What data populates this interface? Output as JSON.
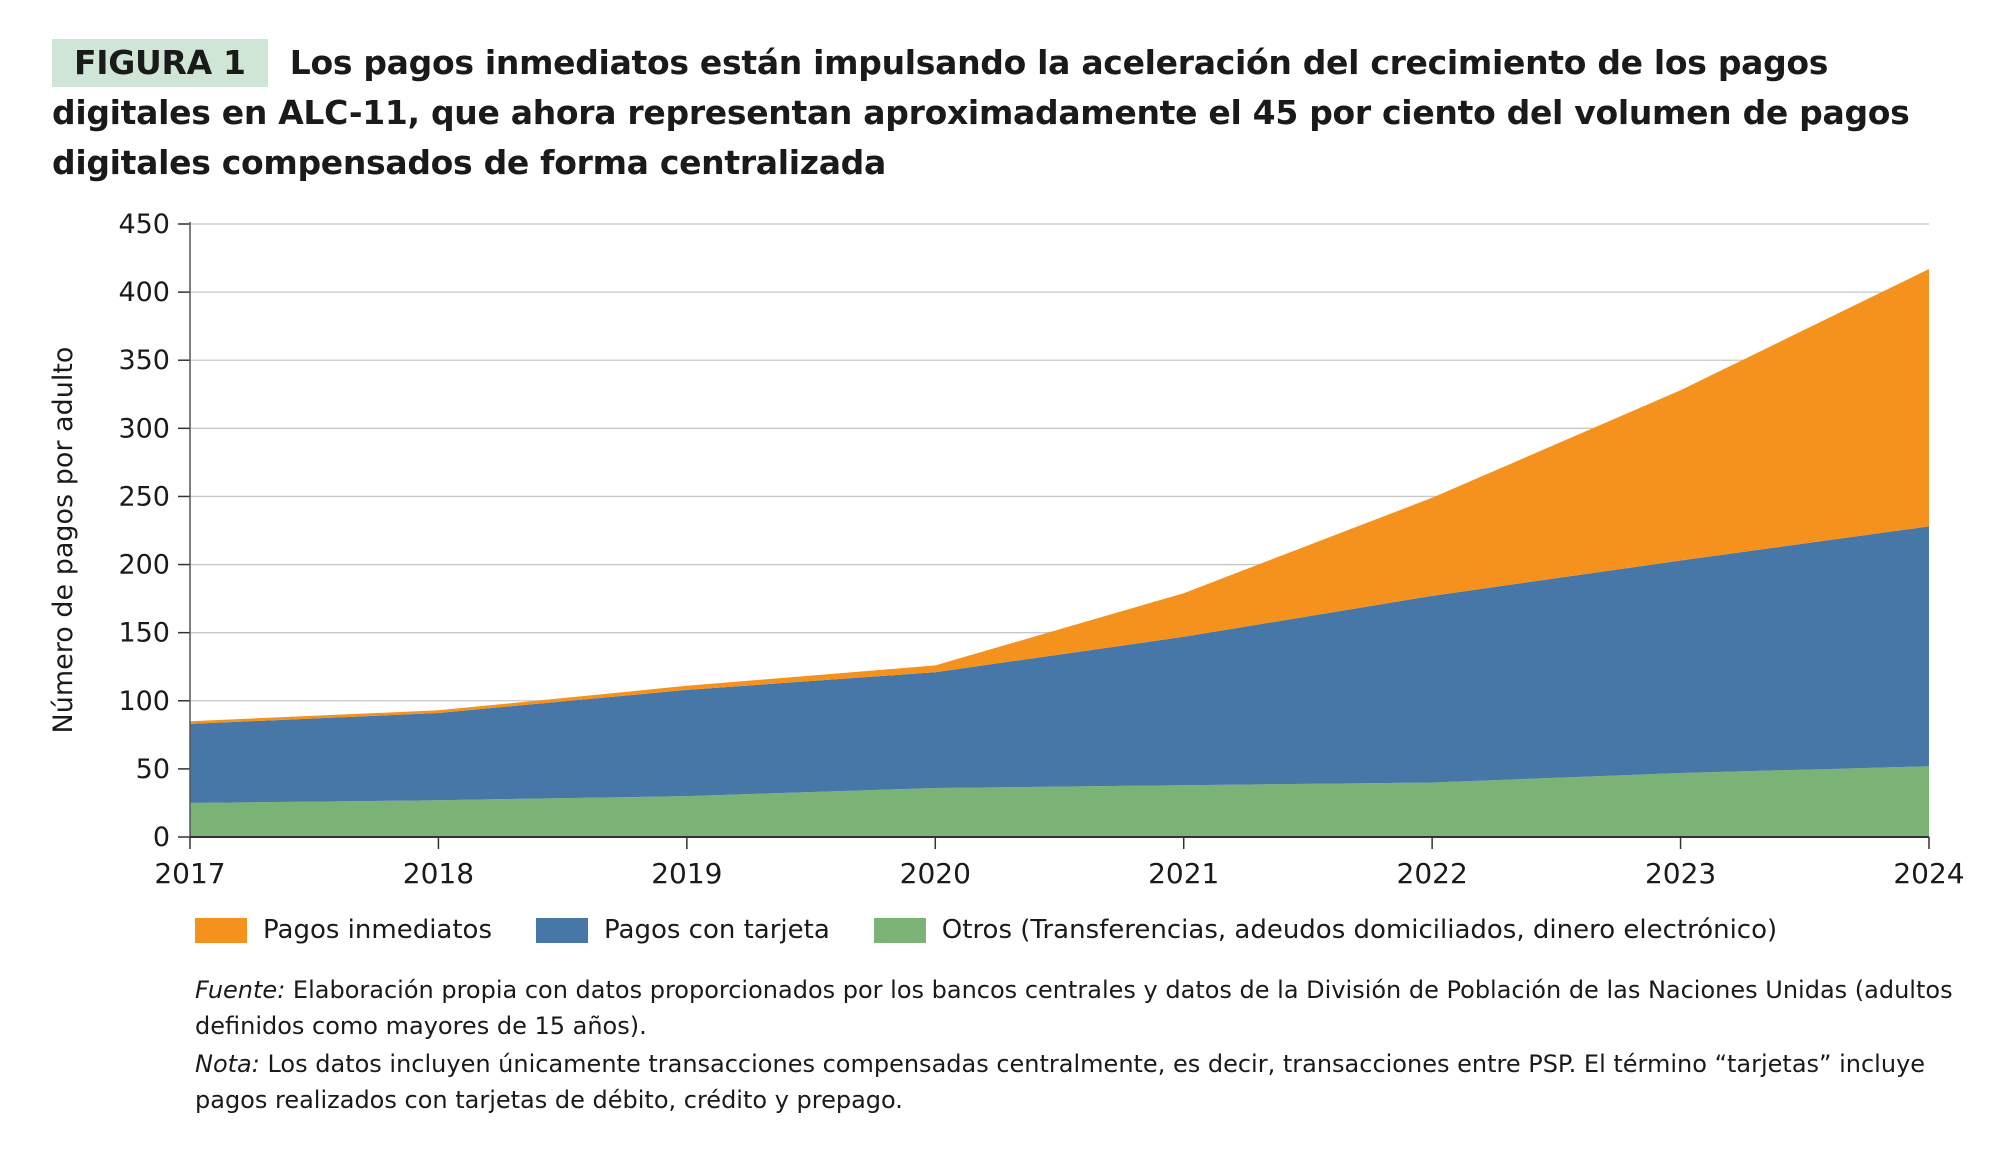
{
  "figure": {
    "label": "FIGURA 1",
    "title": "Los pagos inmediatos están impulsando la aceleración del crecimiento de los pagos digitales en ALC-11, que ahora representan aproximadamente el 45 por ciento del volumen de pagos digitales compensados de forma centralizada"
  },
  "colors": {
    "inmediatos": "#F5921E",
    "tarjeta": "#4677A6",
    "otros": "#7BB376",
    "label_bg": "#CFE6D6"
  },
  "chart_data": {
    "type": "area",
    "stacked": true,
    "title": "",
    "xlabel": "",
    "ylabel": "Número de pagos por adulto",
    "x": [
      "2017",
      "2018",
      "2019",
      "2020",
      "2021",
      "2022",
      "2023",
      "2024"
    ],
    "ylim": [
      0,
      450
    ],
    "yticks": [
      0,
      50,
      100,
      150,
      200,
      250,
      300,
      350,
      400,
      450
    ],
    "series": [
      {
        "name": "Otros (Transferencias, adeudos domiciliados, dinero electrónico)",
        "key": "otros",
        "values": [
          25,
          27,
          30,
          36,
          38,
          40,
          47,
          52
        ]
      },
      {
        "name": "Pagos con tarjeta",
        "key": "tarjeta",
        "values": [
          58,
          64,
          78,
          85,
          109,
          137,
          156,
          176
        ]
      },
      {
        "name": "Pagos inmediatos",
        "key": "inmediatos",
        "values": [
          2,
          2,
          3,
          5,
          32,
          72,
          125,
          189
        ]
      }
    ],
    "legend_position": "bottom"
  },
  "legend": [
    {
      "label": "Pagos inmediatos",
      "key": "inmediatos"
    },
    {
      "label": "Pagos con tarjeta",
      "key": "tarjeta"
    },
    {
      "label": "Otros (Transferencias, adeudos domiciliados, dinero electrónico)",
      "key": "otros"
    }
  ],
  "notes": {
    "source_label": "Fuente:",
    "source_text": "Elaboración propia con datos proporcionados por los bancos centrales y datos de la División de Población de las Naciones Unidas (adultos definidos como mayores de 15 años).",
    "note_label": "Nota:",
    "note_text": "Los datos incluyen únicamente transacciones compensadas centralmente, es decir, transacciones entre PSP. El término “tarjetas” incluye pagos realizados con tarjetas de débito, crédito y prepago."
  }
}
